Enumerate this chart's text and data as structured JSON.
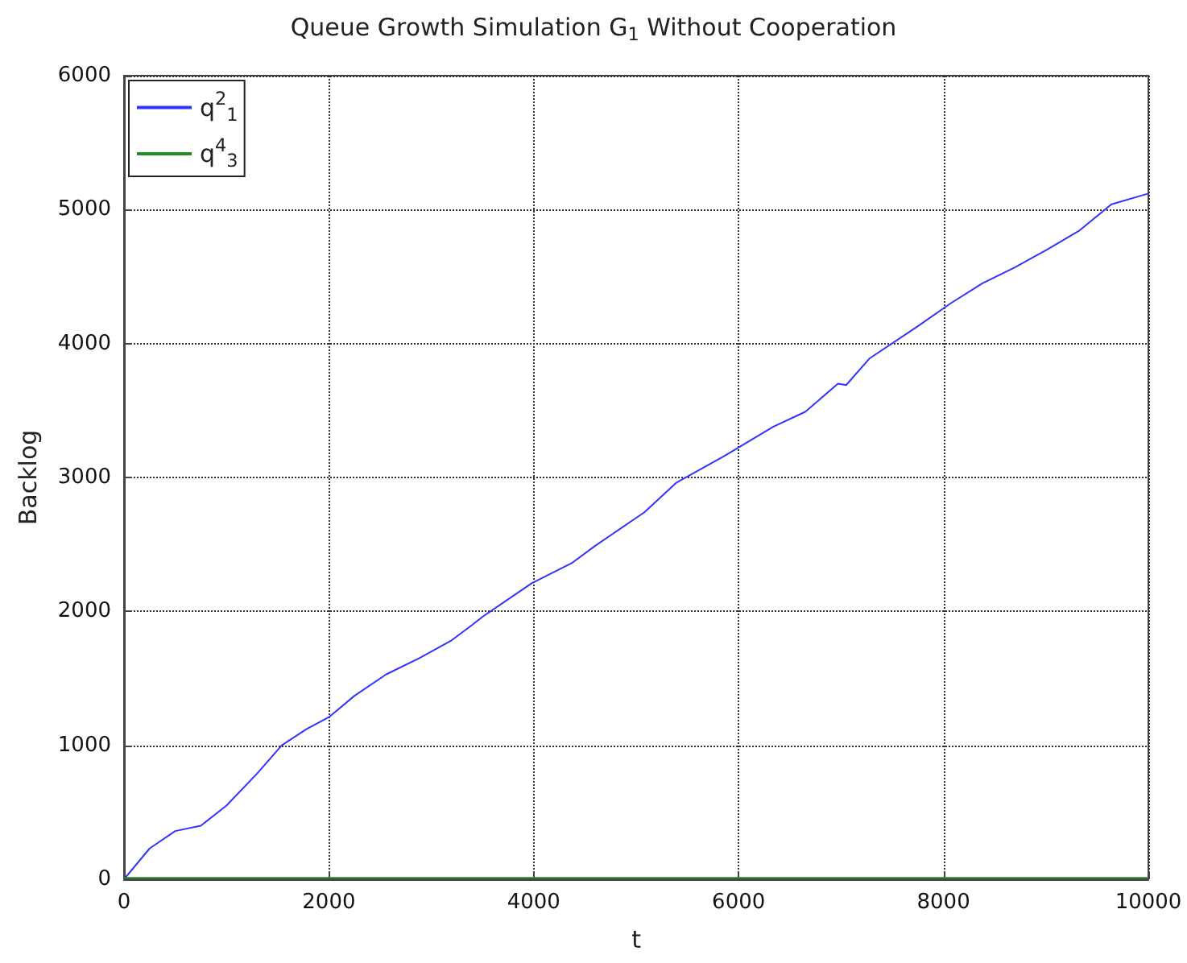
{
  "chart_data": {
    "type": "line",
    "title": "Queue Growth Simulation G$_{1}$ Without Cooperation",
    "xlabel": "t",
    "ylabel": "Backlog",
    "xlim": [
      0,
      10000
    ],
    "xticks": [
      0,
      2000,
      4000,
      6000,
      8000,
      10000
    ],
    "ylim": [
      0,
      6000
    ],
    "yticks": [
      0,
      1000,
      2000,
      3000,
      4000,
      5000,
      6000
    ],
    "grid": true,
    "legend": "top left",
    "marker": "none",
    "line_style": "solid",
    "x": [
      0,
      250,
      500,
      750,
      1000,
      1300,
      1540,
      1780,
      2000,
      2250,
      2560,
      2880,
      3190,
      3400,
      3500,
      3980,
      4370,
      4600,
      5080,
      5390,
      5860,
      6340,
      6650,
      6970,
      7050,
      7280,
      7750,
      8070,
      8380,
      8700,
      9010,
      9320,
      9640,
      10000
    ],
    "series": [
      {
        "name": "q$^{2}$$_{1}$",
        "color": "#3333ff",
        "values": [
          0,
          230,
          360,
          400,
          550,
          790,
          1000,
          1120,
          1210,
          1370,
          1530,
          1650,
          1780,
          1900,
          1960,
          2210,
          2360,
          2490,
          2740,
          2960,
          3160,
          3380,
          3490,
          3700,
          3690,
          3890,
          4130,
          4300,
          4450,
          4570,
          4700,
          4840,
          5040,
          5120
        ]
      },
      {
        "name": "q$^{4}$$_{3}$",
        "color": "#228b22",
        "values": [
          10,
          10,
          10,
          10,
          10,
          10,
          10,
          10,
          10,
          10,
          10,
          10,
          10,
          10,
          10,
          10,
          10,
          10,
          10,
          10,
          10,
          10,
          10,
          10,
          10,
          10,
          10,
          10,
          10,
          10,
          10,
          10,
          10,
          10
        ]
      }
    ]
  }
}
